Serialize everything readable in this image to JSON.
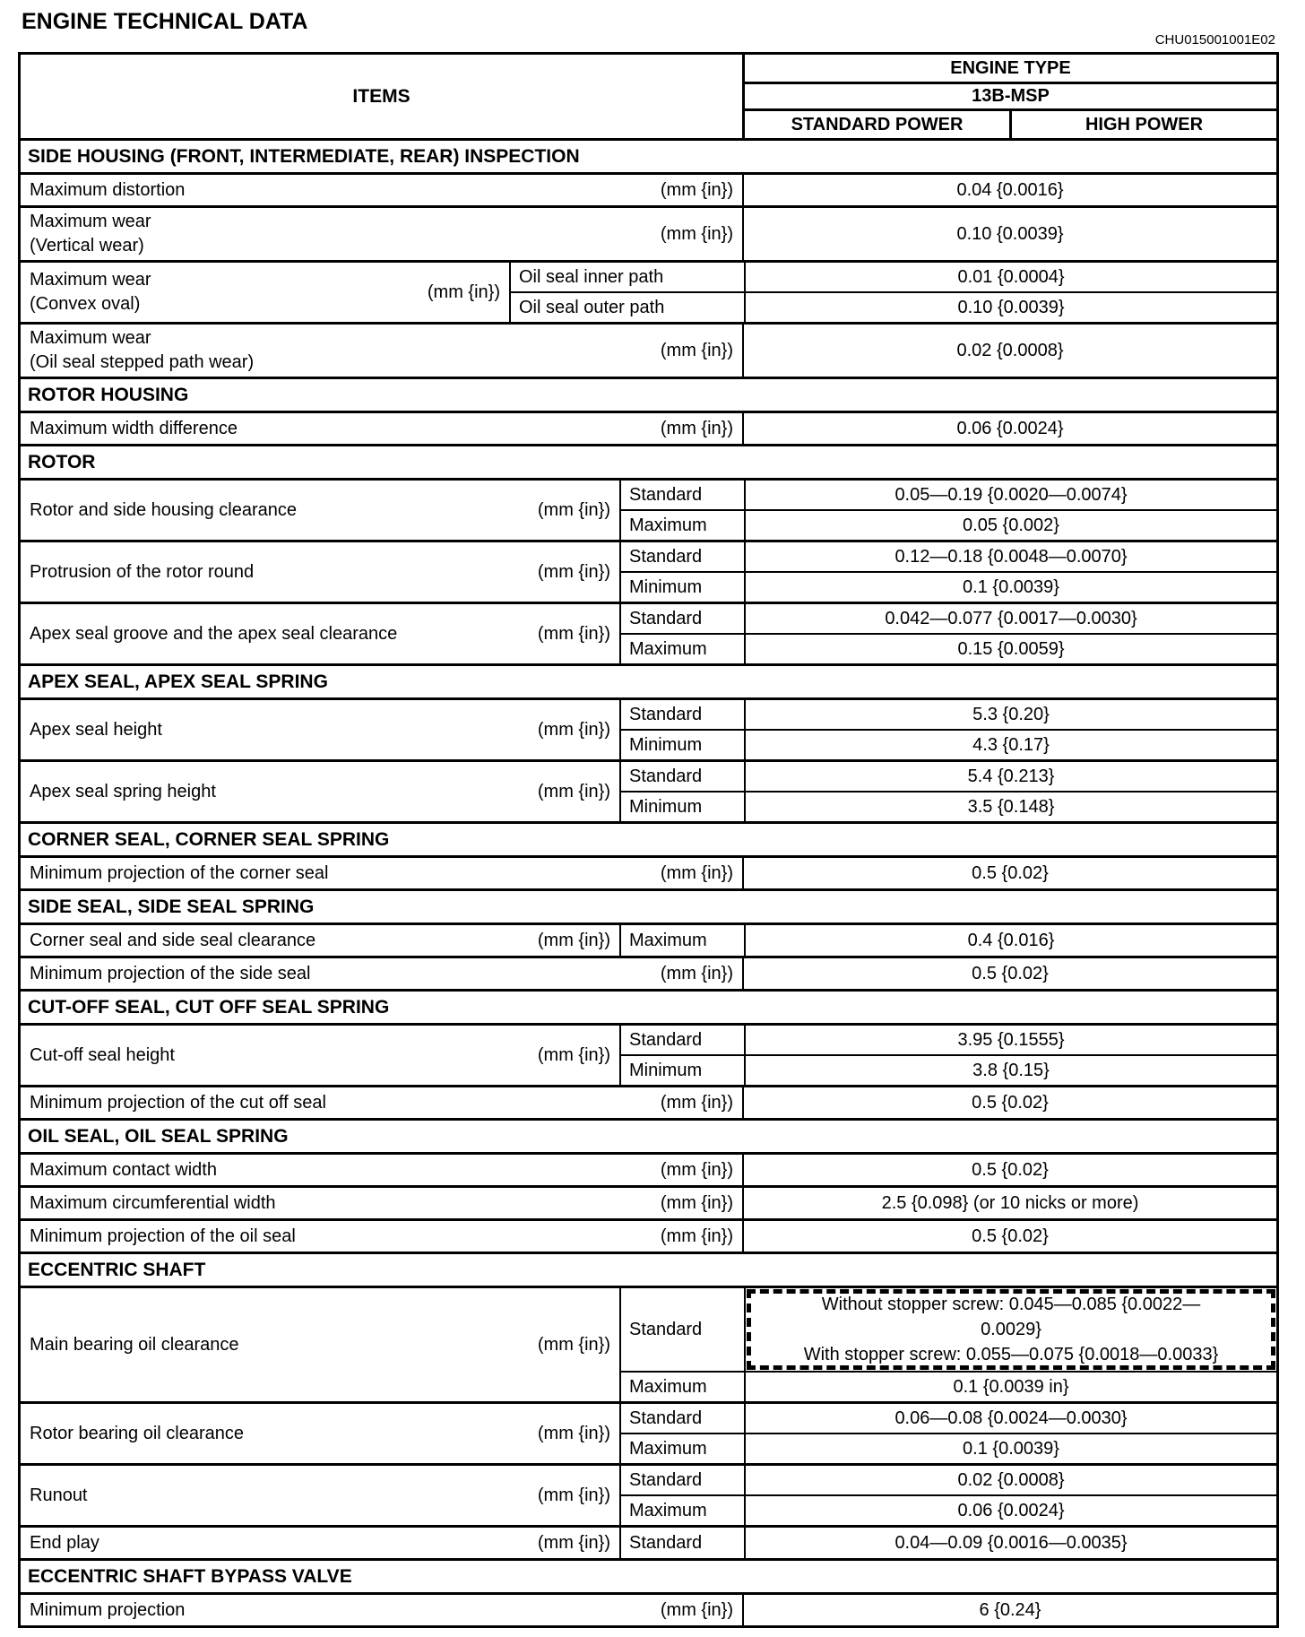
{
  "page": {
    "title": "ENGINE TECHNICAL DATA",
    "code": "CHU015001001E02"
  },
  "header": {
    "items_label": "ITEMS",
    "engine_type_label": "ENGINE TYPE",
    "engine_model": "13B-MSP",
    "col_standard": "STANDARD POWER",
    "col_high": "HIGH POWER"
  },
  "rows": [
    {
      "type": "section",
      "label": "SIDE HOUSING (FRONT, INTERMEDIATE, REAR) INSPECTION"
    },
    {
      "type": "simple",
      "item": "Maximum distortion",
      "unit": "(mm {in})",
      "value": "0.04 {0.0016}"
    },
    {
      "type": "simple",
      "item": "Maximum wear\n(Vertical wear)",
      "unit": "(mm {in})",
      "value": "0.10 {0.0039}"
    },
    {
      "type": "subwide",
      "item": "Maximum wear\n(Convex oval)",
      "unit": "(mm {in})",
      "subrows": [
        {
          "label": "Oil seal inner path",
          "value": "0.01 {0.0004}"
        },
        {
          "label": "Oil seal outer path",
          "value": "0.10 {0.0039}"
        }
      ]
    },
    {
      "type": "simple",
      "item": "Maximum wear\n(Oil seal stepped path wear)",
      "unit": "(mm {in})",
      "value": "0.02 {0.0008}"
    },
    {
      "type": "section",
      "label": "ROTOR HOUSING"
    },
    {
      "type": "simple",
      "item": "Maximum width difference",
      "unit": "(mm {in})",
      "value": "0.06 {0.0024}"
    },
    {
      "type": "section",
      "label": "ROTOR"
    },
    {
      "type": "sub",
      "item": "Rotor and side housing clearance",
      "unit": "(mm {in})",
      "subrows": [
        {
          "label": "Standard",
          "value": "0.05—0.19 {0.0020—0.0074}"
        },
        {
          "label": "Maximum",
          "value": "0.05 {0.002}"
        }
      ]
    },
    {
      "type": "sub",
      "item": "Protrusion of the rotor round",
      "unit": "(mm {in})",
      "subrows": [
        {
          "label": "Standard",
          "value": "0.12—0.18 {0.0048—0.0070}"
        },
        {
          "label": "Minimum",
          "value": "0.1 {0.0039}"
        }
      ]
    },
    {
      "type": "sub",
      "item": "Apex seal groove and the apex seal clearance",
      "unit": "(mm {in})",
      "subrows": [
        {
          "label": "Standard",
          "value": "0.042—0.077 {0.0017—0.0030}"
        },
        {
          "label": "Maximum",
          "value": "0.15 {0.0059}"
        }
      ]
    },
    {
      "type": "section",
      "label": "APEX SEAL, APEX SEAL SPRING"
    },
    {
      "type": "sub",
      "item": "Apex seal height",
      "unit": "(mm {in})",
      "subrows": [
        {
          "label": "Standard",
          "value": "5.3 {0.20}"
        },
        {
          "label": "Minimum",
          "value": "4.3 {0.17}"
        }
      ]
    },
    {
      "type": "sub",
      "item": "Apex seal spring height",
      "unit": "(mm {in})",
      "subrows": [
        {
          "label": "Standard",
          "value": "5.4 {0.213}"
        },
        {
          "label": "Minimum",
          "value": "3.5 {0.148}"
        }
      ]
    },
    {
      "type": "section",
      "label": "CORNER SEAL, CORNER SEAL SPRING"
    },
    {
      "type": "simple",
      "item": "Minimum projection of the corner seal",
      "unit": "(mm {in})",
      "value": "0.5 {0.02}"
    },
    {
      "type": "section",
      "label": "SIDE SEAL, SIDE SEAL SPRING"
    },
    {
      "type": "sub",
      "item": "Corner seal and side seal clearance",
      "unit": "(mm {in})",
      "subrows": [
        {
          "label": "Maximum",
          "value": "0.4 {0.016}"
        }
      ]
    },
    {
      "type": "simple",
      "item": "Minimum projection of the side seal",
      "unit": "(mm {in})",
      "value": "0.5 {0.02}"
    },
    {
      "type": "section",
      "label": "CUT-OFF SEAL, CUT OFF SEAL SPRING"
    },
    {
      "type": "sub",
      "item": "Cut-off seal height",
      "unit": "(mm {in})",
      "subrows": [
        {
          "label": "Standard",
          "value": "3.95 {0.1555}"
        },
        {
          "label": "Minimum",
          "value": "3.8 {0.15}"
        }
      ]
    },
    {
      "type": "simple",
      "item": "Minimum projection of the cut off seal",
      "unit": "(mm {in})",
      "value": "0.5 {0.02}"
    },
    {
      "type": "section",
      "label": "OIL SEAL, OIL SEAL SPRING"
    },
    {
      "type": "simple",
      "item": "Maximum contact width",
      "unit": "(mm {in})",
      "value": "0.5 {0.02}"
    },
    {
      "type": "simple",
      "item": "Maximum circumferential width",
      "unit": "(mm {in})",
      "value": "2.5 {0.098} (or 10 nicks or more)"
    },
    {
      "type": "simple",
      "item": "Minimum projection of the oil seal",
      "unit": "(mm {in})",
      "value": "0.5 {0.02}"
    },
    {
      "type": "section",
      "label": "ECCENTRIC SHAFT"
    },
    {
      "type": "sub",
      "item": "Main bearing oil clearance",
      "unit": "(mm {in})",
      "subrows": [
        {
          "label": "Standard",
          "value": "Without stopper screw: 0.045—0.085 {0.0022—\n0.0029}\nWith stopper screw: 0.055—0.075 {0.0018—0.0033}",
          "highlight": true,
          "tall": true
        },
        {
          "label": "Maximum",
          "value": "0.1 {0.0039 in}"
        }
      ]
    },
    {
      "type": "sub",
      "item": "Rotor bearing oil clearance",
      "unit": "(mm {in})",
      "subrows": [
        {
          "label": "Standard",
          "value": "0.06—0.08 {0.0024—0.0030}"
        },
        {
          "label": "Maximum",
          "value": "0.1 {0.0039}"
        }
      ]
    },
    {
      "type": "sub",
      "item": "Runout",
      "unit": "(mm {in})",
      "subrows": [
        {
          "label": "Standard",
          "value": "0.02 {0.0008}"
        },
        {
          "label": "Maximum",
          "value": "0.06 {0.0024}"
        }
      ]
    },
    {
      "type": "sub",
      "item": "End play",
      "unit": "(mm {in})",
      "subrows": [
        {
          "label": "Standard",
          "value": "0.04—0.09 {0.0016—0.0035}"
        }
      ]
    },
    {
      "type": "section",
      "label": "ECCENTRIC SHAFT BYPASS VALVE"
    },
    {
      "type": "simple",
      "item": "Minimum projection",
      "unit": "(mm {in})",
      "value": "6 {0.24}"
    }
  ]
}
